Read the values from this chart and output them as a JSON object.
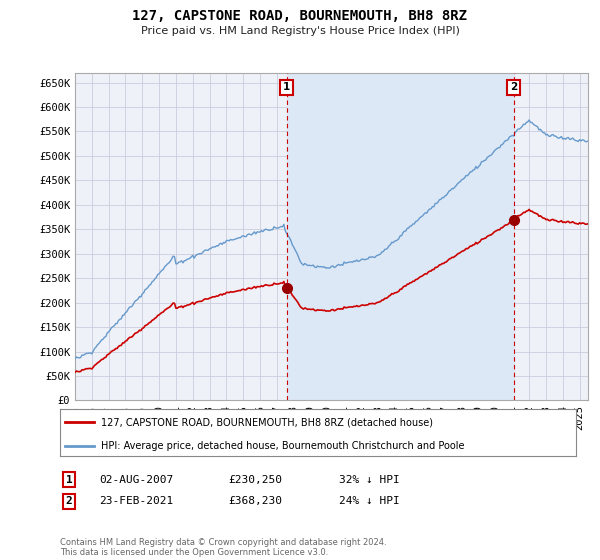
{
  "title": "127, CAPSTONE ROAD, BOURNEMOUTH, BH8 8RZ",
  "subtitle": "Price paid vs. HM Land Registry's House Price Index (HPI)",
  "ylim": [
    0,
    670000
  ],
  "yticks": [
    0,
    50000,
    100000,
    150000,
    200000,
    250000,
    300000,
    350000,
    400000,
    450000,
    500000,
    550000,
    600000,
    650000
  ],
  "ytick_labels": [
    "£0",
    "£50K",
    "£100K",
    "£150K",
    "£200K",
    "£250K",
    "£300K",
    "£350K",
    "£400K",
    "£450K",
    "£500K",
    "£550K",
    "£600K",
    "£650K"
  ],
  "hpi_color": "#6699cc",
  "price_color": "#cc0000",
  "annotation_box_color": "#cc0000",
  "grid_color": "#ccccdd",
  "background_color": "#ffffff",
  "plot_bg_color": "#eef2f8",
  "shade_color": "#dce8f5",
  "legend_label_red": "127, CAPSTONE ROAD, BOURNEMOUTH, BH8 8RZ (detached house)",
  "legend_label_blue": "HPI: Average price, detached house, Bournemouth Christchurch and Poole",
  "transaction1_date": "02-AUG-2007",
  "transaction1_price": "£230,250",
  "transaction1_hpi": "32% ↓ HPI",
  "transaction2_date": "23-FEB-2021",
  "transaction2_price": "£368,230",
  "transaction2_hpi": "24% ↓ HPI",
  "footer": "Contains HM Land Registry data © Crown copyright and database right 2024.\nThis data is licensed under the Open Government Licence v3.0.",
  "xlim_start": 1995.0,
  "xlim_end": 2025.5,
  "t1_year": 2007.583,
  "t2_year": 2021.083,
  "t1_price": 230250,
  "t2_price": 368230
}
